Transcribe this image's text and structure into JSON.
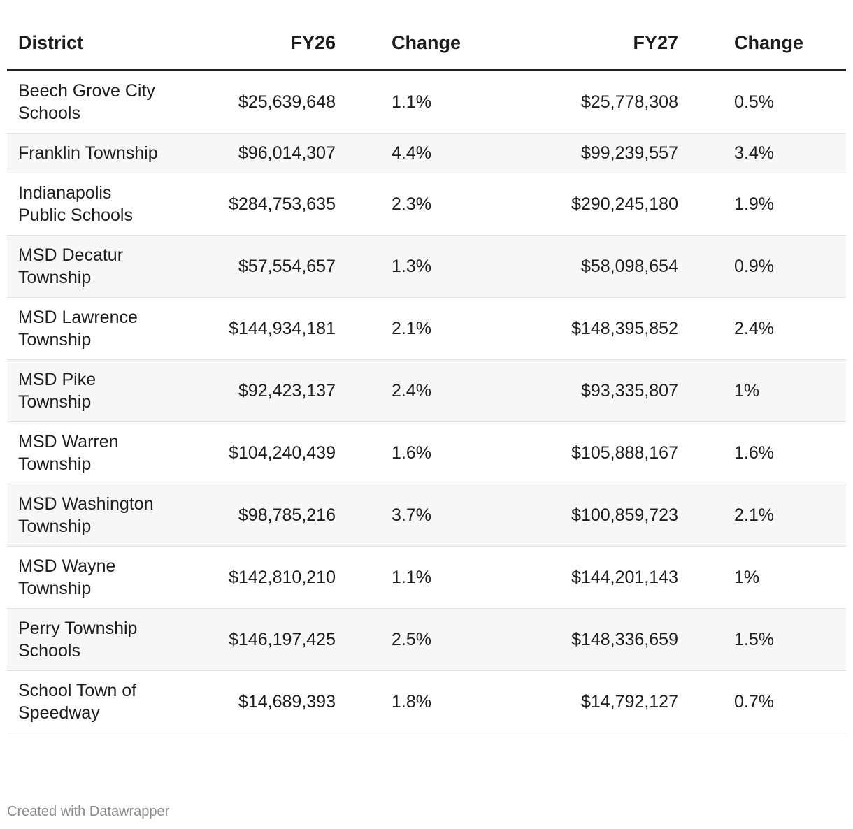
{
  "chart_data": {
    "type": "table",
    "columns": [
      "District",
      "FY26",
      "Change",
      "FY27",
      "Change"
    ],
    "rows": [
      [
        "Beech Grove City Schools",
        "$25,639,648",
        "1.1%",
        "$25,778,308",
        "0.5%"
      ],
      [
        "Franklin Township",
        "$96,014,307",
        "4.4%",
        "$99,239,557",
        "3.4%"
      ],
      [
        "Indianapolis Public Schools",
        "$284,753,635",
        "2.3%",
        "$290,245,180",
        "1.9%"
      ],
      [
        "MSD Decatur Township",
        "$57,554,657",
        "1.3%",
        "$58,098,654",
        "0.9%"
      ],
      [
        "MSD Lawrence Township",
        "$144,934,181",
        "2.1%",
        "$148,395,852",
        "2.4%"
      ],
      [
        "MSD Pike Township",
        "$92,423,137",
        "2.4%",
        "$93,335,807",
        "1%"
      ],
      [
        "MSD Warren Township",
        "$104,240,439",
        "1.6%",
        "$105,888,167",
        "1.6%"
      ],
      [
        "MSD Washington Township",
        "$98,785,216",
        "3.7%",
        "$100,859,723",
        "2.1%"
      ],
      [
        "MSD Wayne Township",
        "$142,810,210",
        "1.1%",
        "$144,201,143",
        "1%"
      ],
      [
        "Perry Township Schools",
        "$146,197,425",
        "2.5%",
        "$148,336,659",
        "1.5%"
      ],
      [
        "School Town of Speedway",
        "$14,689,393",
        "1.8%",
        "$14,792,127",
        "0.7%"
      ]
    ]
  },
  "footer": {
    "credit": "Created with Datawrapper"
  },
  "colors": {
    "text": "#1d1d1d",
    "header_rule": "#222222",
    "stripe": "#f7f7f7",
    "footer": "#8a8a8a"
  }
}
